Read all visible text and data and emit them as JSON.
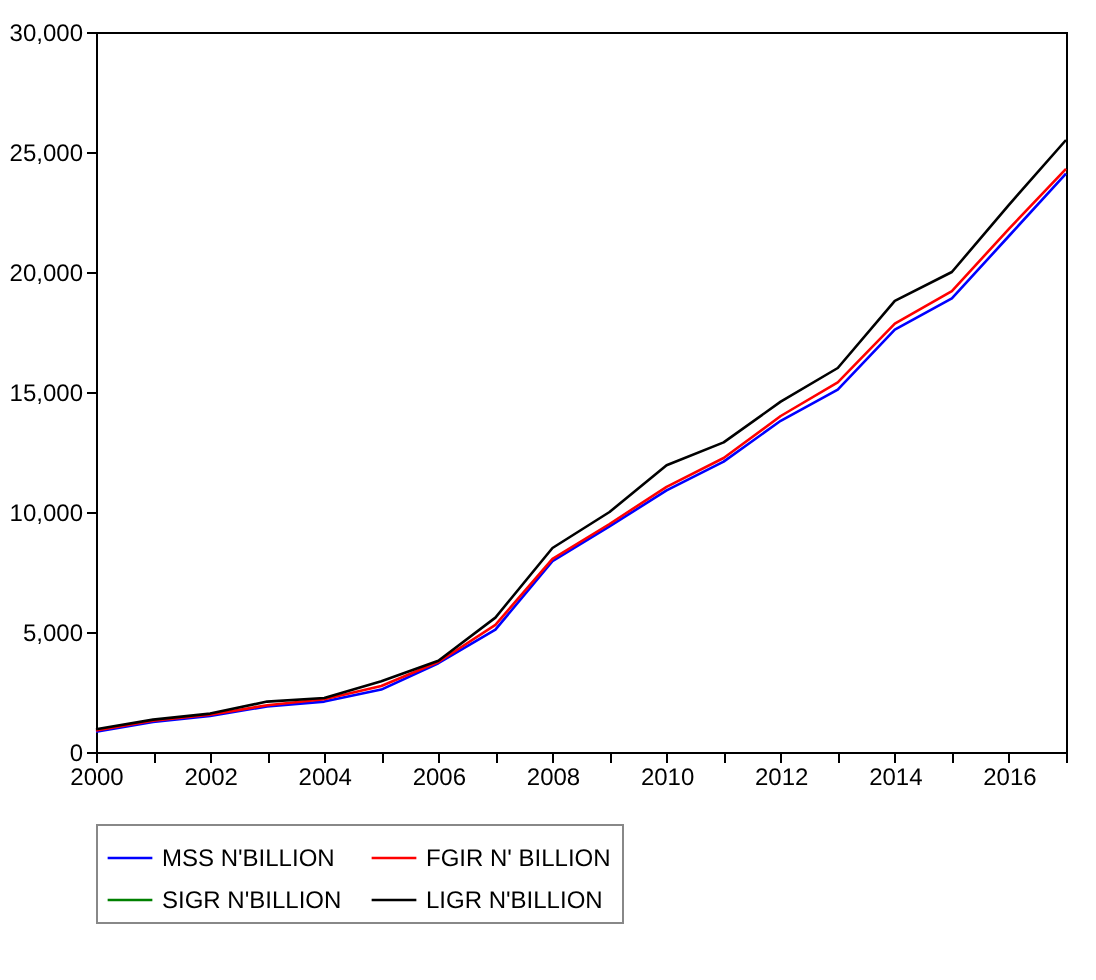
{
  "chart_data": {
    "type": "line",
    "x": [
      2000,
      2001,
      2002,
      2003,
      2004,
      2005,
      2006,
      2007,
      2008,
      2009,
      2010,
      2011,
      2012,
      2013,
      2014,
      2015,
      2016,
      2017
    ],
    "series": [
      {
        "name": "MSS N'BILLION",
        "color": "#0000ff",
        "values": [
          850,
          1250,
          1500,
          1900,
          2100,
          2600,
          3700,
          5100,
          7950,
          9400,
          10900,
          12100,
          13800,
          15100,
          17600,
          18900,
          21500,
          24100
        ]
      },
      {
        "name": "FGIR N' BILLION",
        "color": "#ff0000",
        "values": [
          900,
          1300,
          1550,
          1950,
          2200,
          2750,
          3750,
          5300,
          8050,
          9500,
          11050,
          12250,
          14000,
          15400,
          17850,
          19200,
          21800,
          24300
        ]
      },
      {
        "name": "SIGR N'BILLION",
        "color": "#008000",
        "values": [
          null,
          null,
          null,
          null,
          null,
          null,
          null,
          null,
          null,
          null,
          null,
          null,
          null,
          null,
          null,
          null,
          null,
          null
        ]
      },
      {
        "name": "LIGR N'BILLION",
        "color": "#000000",
        "values": [
          950,
          1350,
          1600,
          2100,
          2250,
          2950,
          3800,
          5600,
          8500,
          10000,
          11950,
          12900,
          14600,
          16000,
          18800,
          20000,
          22800,
          25500
        ]
      }
    ],
    "xlim": [
      2000,
      2017
    ],
    "xticks": [
      2000,
      {
        "value": 2001,
        "label": null
      },
      2002,
      {
        "value": 2003,
        "label": null
      },
      2004,
      {
        "value": 2005,
        "label": null
      },
      2006,
      {
        "value": 2007,
        "label": null
      },
      2008,
      {
        "value": 2009,
        "label": null
      },
      2010,
      {
        "value": 2011,
        "label": null
      },
      2012,
      {
        "value": 2013,
        "label": null
      },
      2014,
      {
        "value": 2015,
        "label": null
      },
      2016,
      {
        "value": 2017,
        "label": null
      }
    ],
    "ylim": [
      0,
      30000
    ],
    "yticks": [
      {
        "value": 0,
        "label": "0"
      },
      {
        "value": 5000,
        "label": "5,000"
      },
      {
        "value": 10000,
        "label": "10,000"
      },
      {
        "value": 15000,
        "label": "15,000"
      },
      {
        "value": 20000,
        "label": "20,000"
      },
      {
        "value": 25000,
        "label": "25,000"
      },
      {
        "value": 30000,
        "label": "30,000"
      }
    ],
    "grid": false,
    "legend": "bottom"
  }
}
